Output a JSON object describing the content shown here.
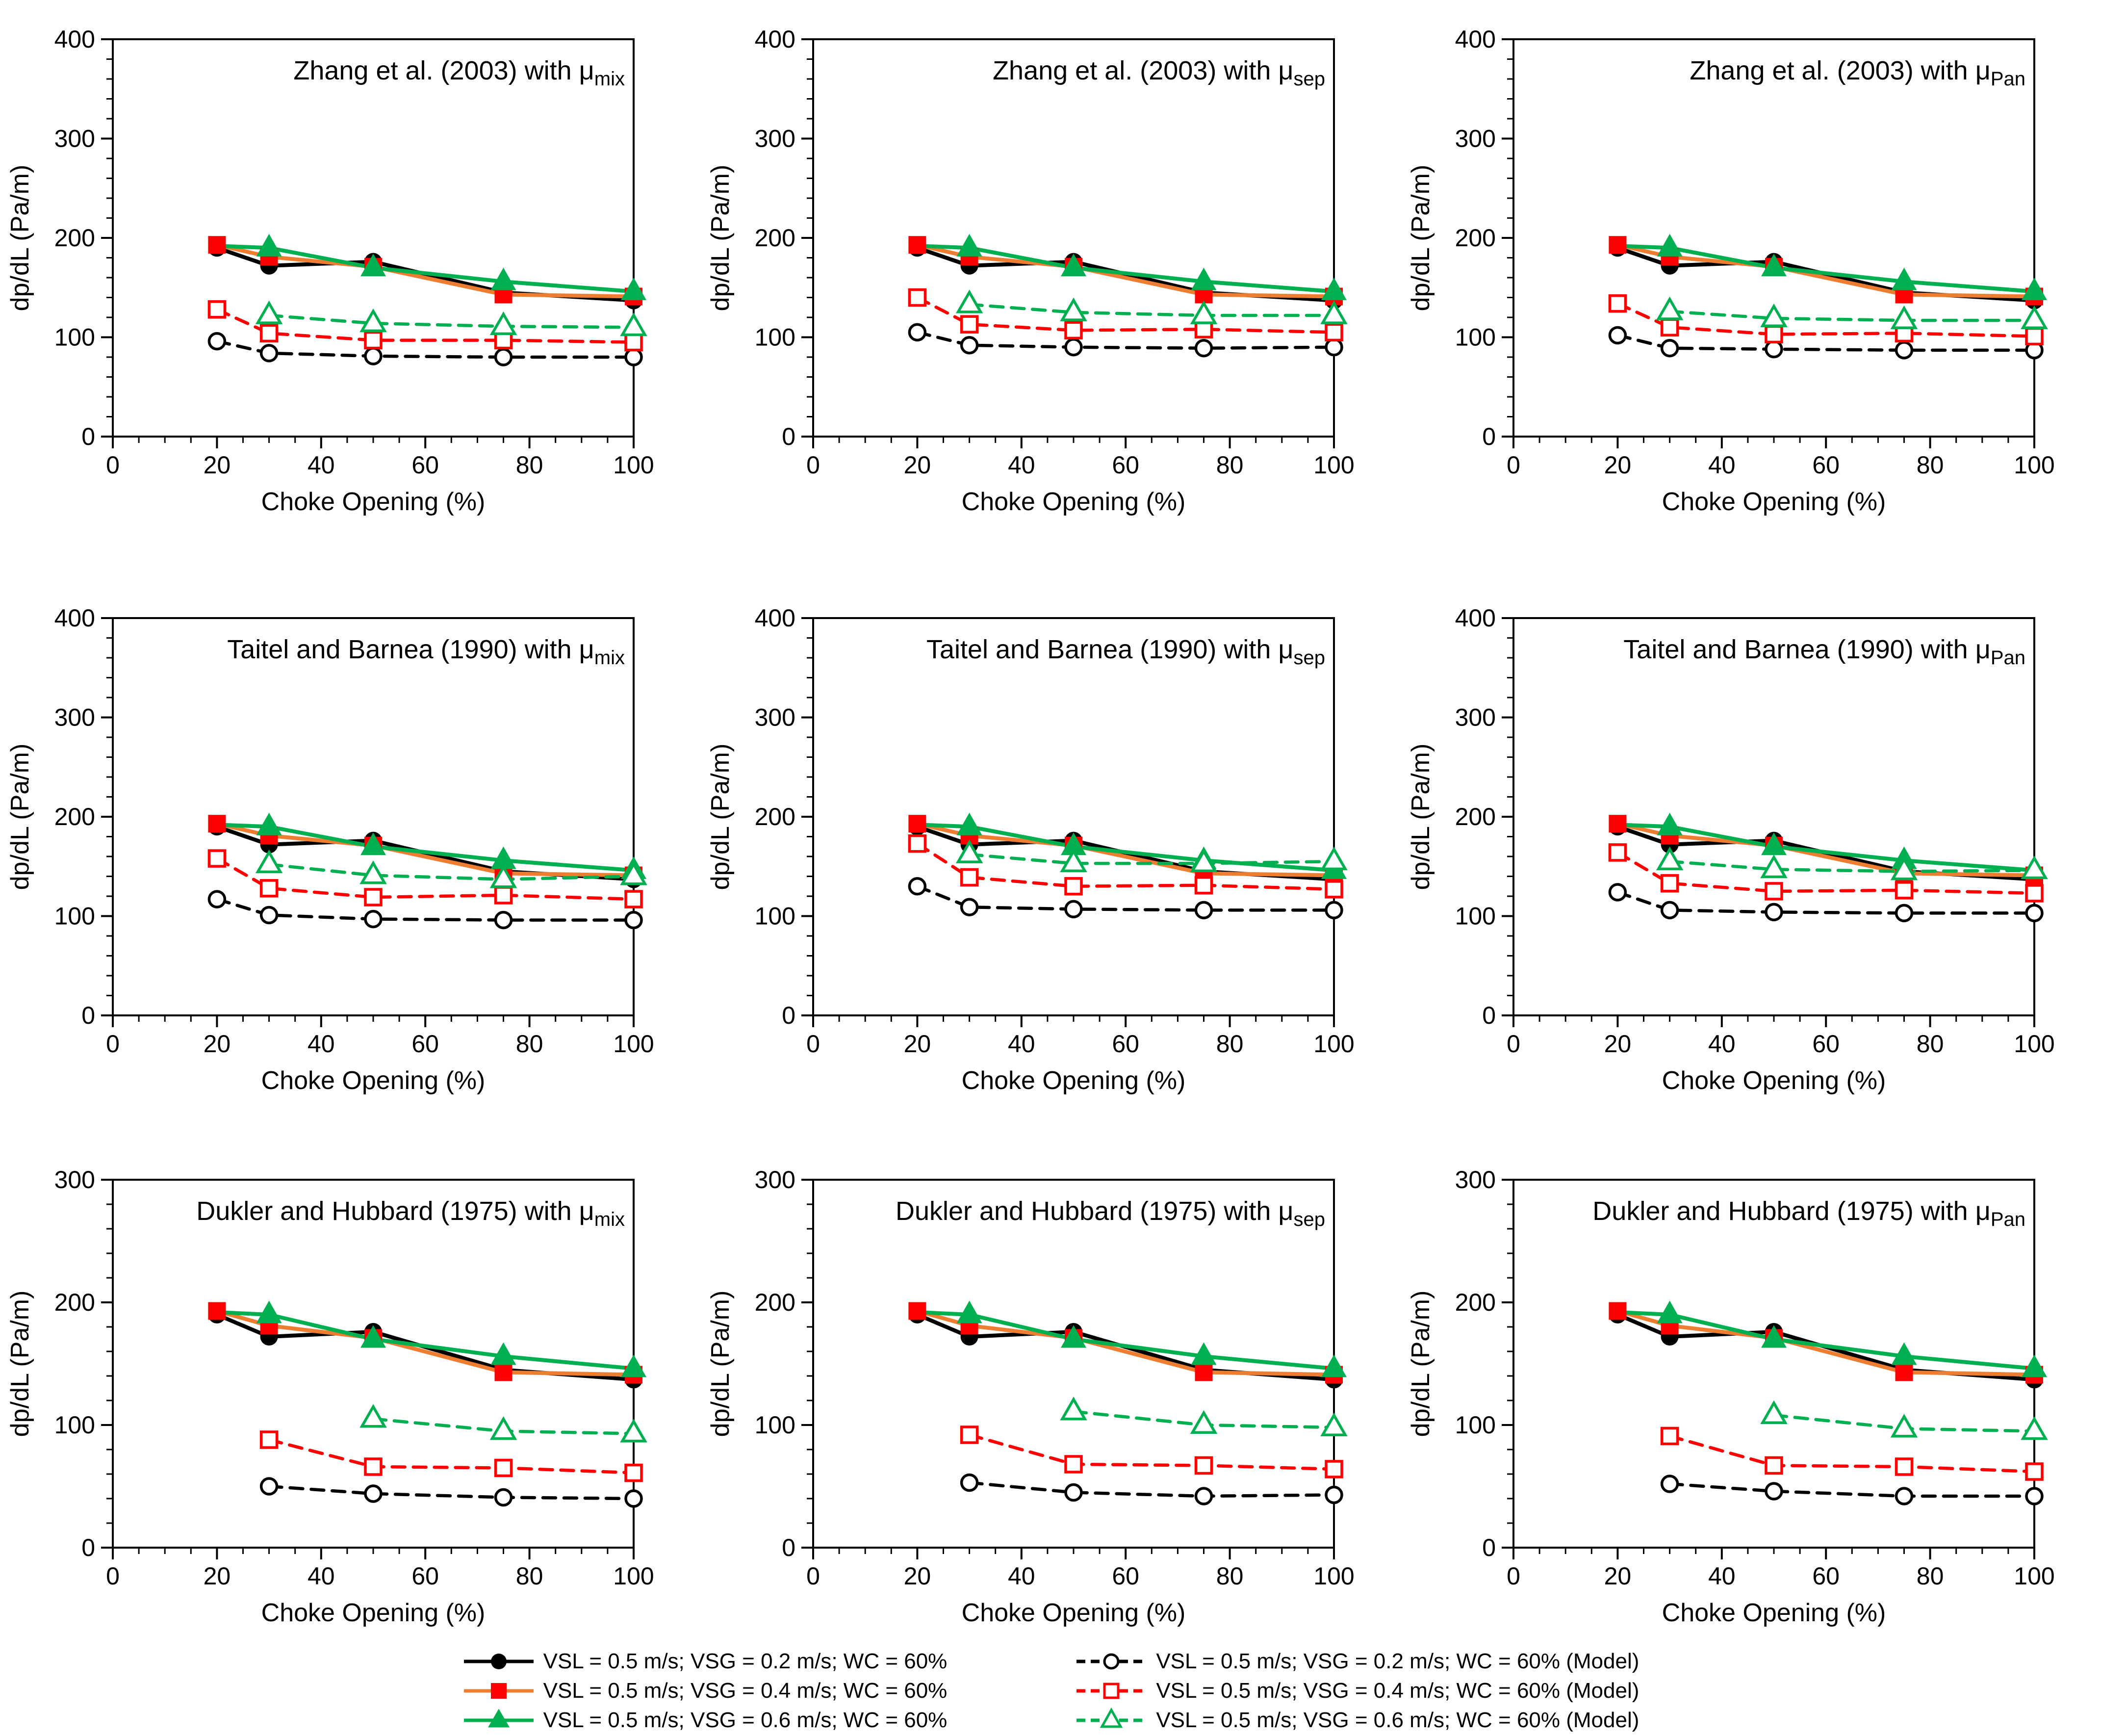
{
  "page": {
    "background": "#ffffff"
  },
  "colors": {
    "black": "#000000",
    "red": "#FF0000",
    "orange_line": "#ED7D31",
    "green": "#00B050",
    "axis": "#000000"
  },
  "legend": {
    "experimental": [
      {
        "label": "VSL = 0.5 m/s; VSG = 0.2 m/s; WC = 60%",
        "marker": "circle",
        "marker_color": "#000000",
        "filled": true,
        "line": "solid",
        "line_color": "#000000"
      },
      {
        "label": "VSL = 0.5 m/s; VSG = 0.4 m/s; WC = 60%",
        "marker": "square",
        "marker_color": "#FF0000",
        "filled": true,
        "line": "solid",
        "line_color": "#ED7D31"
      },
      {
        "label": "VSL = 0.5 m/s; VSG = 0.6 m/s; WC = 60%",
        "marker": "triangle",
        "marker_color": "#00B050",
        "filled": true,
        "line": "solid",
        "line_color": "#00B050"
      }
    ],
    "model": [
      {
        "label": "VSL = 0.5 m/s; VSG = 0.2 m/s; WC = 60% (Model)",
        "marker": "circle",
        "marker_color": "#000000",
        "filled": false,
        "line": "dashed",
        "line_color": "#000000"
      },
      {
        "label": "VSL = 0.5 m/s; VSG = 0.4 m/s; WC = 60% (Model)",
        "marker": "square",
        "marker_color": "#FF0000",
        "filled": false,
        "line": "dashed",
        "line_color": "#FF0000"
      },
      {
        "label": "VSL = 0.5 m/s; VSG = 0.6 m/s; WC = 60% (Model)",
        "marker": "triangle",
        "marker_color": "#00B050",
        "filled": false,
        "line": "dashed",
        "line_color": "#00B050"
      }
    ]
  },
  "chart_data": {
    "type": "line",
    "xlabel": "Choke Opening (%)",
    "ylabel": "dp/dL (Pa/m)",
    "xlim": [
      0,
      100
    ],
    "x_ticks": [
      0,
      20,
      40,
      60,
      80,
      100
    ],
    "x_minor_step": 5,
    "y_minor_step": 20,
    "grid": false,
    "legend_position": "bottom",
    "experimental_series": [
      {
        "name": "VSL = 0.5 m/s; VSG = 0.2 m/s; WC = 60%",
        "marker": "circle",
        "marker_color": "#000000",
        "filled": true,
        "line": "solid",
        "line_color": "#000000",
        "x": [
          20,
          30,
          50,
          75,
          100
        ],
        "y": [
          190,
          172,
          176,
          145,
          137
        ]
      },
      {
        "name": "VSL = 0.5 m/s; VSG = 0.4 m/s; WC = 60%",
        "marker": "square",
        "marker_color": "#FF0000",
        "filled": true,
        "line": "solid",
        "line_color": "#ED7D31",
        "x": [
          20,
          30,
          50,
          75,
          100
        ],
        "y": [
          193,
          181,
          171,
          143,
          141
        ]
      },
      {
        "name": "VSL = 0.5 m/s; VSG = 0.6 m/s; WC = 60%",
        "marker": "triangle",
        "marker_color": "#00B050",
        "filled": true,
        "line": "solid",
        "line_color": "#00B050",
        "x": [
          20,
          30,
          50,
          75,
          100
        ],
        "y": [
          192,
          190,
          170,
          156,
          146
        ],
        "skip_first_marker": true
      }
    ],
    "charts": [
      {
        "id": "zhang-mu-mix",
        "title_base": "Zhang et al. (2003) with μ",
        "title_sub": "mix",
        "ylim": [
          0,
          400
        ],
        "y_ticks": [
          0,
          100,
          200,
          300,
          400
        ],
        "row": 0,
        "col": 0,
        "model_series": [
          {
            "name": "VSL = 0.5 m/s; VSG = 0.2 m/s; WC = 60% (Model)",
            "marker": "circle",
            "marker_color": "#000000",
            "filled": false,
            "line": "dashed",
            "line_color": "#000000",
            "x": [
              20,
              30,
              50,
              75,
              100
            ],
            "y": [
              96,
              84,
              81,
              80,
              80
            ]
          },
          {
            "name": "VSL = 0.5 m/s; VSG = 0.4 m/s; WC = 60% (Model)",
            "marker": "square",
            "marker_color": "#FF0000",
            "filled": false,
            "line": "dashed",
            "line_color": "#FF0000",
            "x": [
              20,
              30,
              50,
              75,
              100
            ],
            "y": [
              128,
              104,
              97,
              97,
              95
            ]
          },
          {
            "name": "VSL = 0.5 m/s; VSG = 0.6 m/s; WC = 60% (Model)",
            "marker": "triangle",
            "marker_color": "#00B050",
            "filled": false,
            "line": "dashed",
            "line_color": "#00B050",
            "x": [
              30,
              50,
              75,
              100
            ],
            "y": [
              122,
              114,
              111,
              110
            ]
          }
        ]
      },
      {
        "id": "zhang-mu-sep",
        "title_base": "Zhang et al. (2003) with μ",
        "title_sub": "sep",
        "ylim": [
          0,
          400
        ],
        "y_ticks": [
          0,
          100,
          200,
          300,
          400
        ],
        "row": 0,
        "col": 1,
        "model_series": [
          {
            "name": "VSL = 0.5 m/s; VSG = 0.2 m/s; WC = 60% (Model)",
            "marker": "circle",
            "marker_color": "#000000",
            "filled": false,
            "line": "dashed",
            "line_color": "#000000",
            "x": [
              20,
              30,
              50,
              75,
              100
            ],
            "y": [
              105,
              92,
              90,
              89,
              90
            ]
          },
          {
            "name": "VSL = 0.5 m/s; VSG = 0.4 m/s; WC = 60% (Model)",
            "marker": "square",
            "marker_color": "#FF0000",
            "filled": false,
            "line": "dashed",
            "line_color": "#FF0000",
            "x": [
              20,
              30,
              50,
              75,
              100
            ],
            "y": [
              140,
              113,
              107,
              108,
              105
            ]
          },
          {
            "name": "VSL = 0.5 m/s; VSG = 0.6 m/s; WC = 60% (Model)",
            "marker": "triangle",
            "marker_color": "#00B050",
            "filled": false,
            "line": "dashed",
            "line_color": "#00B050",
            "x": [
              30,
              50,
              75,
              100
            ],
            "y": [
              133,
              125,
              122,
              122
            ]
          }
        ]
      },
      {
        "id": "zhang-mu-pan",
        "title_base": "Zhang et al. (2003) with μ",
        "title_sub": "Pan",
        "ylim": [
          0,
          400
        ],
        "y_ticks": [
          0,
          100,
          200,
          300,
          400
        ],
        "row": 0,
        "col": 2,
        "model_series": [
          {
            "name": "VSL = 0.5 m/s; VSG = 0.2 m/s; WC = 60% (Model)",
            "marker": "circle",
            "marker_color": "#000000",
            "filled": false,
            "line": "dashed",
            "line_color": "#000000",
            "x": [
              20,
              30,
              50,
              75,
              100
            ],
            "y": [
              102,
              89,
              88,
              87,
              87
            ]
          },
          {
            "name": "VSL = 0.5 m/s; VSG = 0.4 m/s; WC = 60% (Model)",
            "marker": "square",
            "marker_color": "#FF0000",
            "filled": false,
            "line": "dashed",
            "line_color": "#FF0000",
            "x": [
              20,
              30,
              50,
              75,
              100
            ],
            "y": [
              134,
              110,
              103,
              104,
              101
            ]
          },
          {
            "name": "VSL = 0.5 m/s; VSG = 0.6 m/s; WC = 60% (Model)",
            "marker": "triangle",
            "marker_color": "#00B050",
            "filled": false,
            "line": "dashed",
            "line_color": "#00B050",
            "x": [
              30,
              50,
              75,
              100
            ],
            "y": [
              126,
              119,
              117,
              117
            ]
          }
        ]
      },
      {
        "id": "taitel-mu-mix",
        "title_base": "Taitel and Barnea (1990) with μ",
        "title_sub": "mix",
        "ylim": [
          0,
          400
        ],
        "y_ticks": [
          0,
          100,
          200,
          300,
          400
        ],
        "row": 1,
        "col": 0,
        "model_series": [
          {
            "name": "VSL = 0.5 m/s; VSG = 0.2 m/s; WC = 60% (Model)",
            "marker": "circle",
            "marker_color": "#000000",
            "filled": false,
            "line": "dashed",
            "line_color": "#000000",
            "x": [
              20,
              30,
              50,
              75,
              100
            ],
            "y": [
              117,
              101,
              97,
              96,
              96
            ]
          },
          {
            "name": "VSL = 0.5 m/s; VSG = 0.4 m/s; WC = 60% (Model)",
            "marker": "square",
            "marker_color": "#FF0000",
            "filled": false,
            "line": "dashed",
            "line_color": "#FF0000",
            "x": [
              20,
              30,
              50,
              75,
              100
            ],
            "y": [
              158,
              128,
              119,
              121,
              117
            ]
          },
          {
            "name": "VSL = 0.5 m/s; VSG = 0.6 m/s; WC = 60% (Model)",
            "marker": "triangle",
            "marker_color": "#00B050",
            "filled": false,
            "line": "dashed",
            "line_color": "#00B050",
            "x": [
              30,
              50,
              75,
              100
            ],
            "y": [
              152,
              141,
              137,
              140
            ]
          }
        ]
      },
      {
        "id": "taitel-mu-sep",
        "title_base": "Taitel and Barnea (1990) with μ",
        "title_sub": "sep",
        "ylim": [
          0,
          400
        ],
        "y_ticks": [
          0,
          100,
          200,
          300,
          400
        ],
        "row": 1,
        "col": 1,
        "model_series": [
          {
            "name": "VSL = 0.5 m/s; VSG = 0.2 m/s; WC = 60% (Model)",
            "marker": "circle",
            "marker_color": "#000000",
            "filled": false,
            "line": "dashed",
            "line_color": "#000000",
            "x": [
              20,
              30,
              50,
              75,
              100
            ],
            "y": [
              130,
              109,
              107,
              106,
              106
            ]
          },
          {
            "name": "VSL = 0.5 m/s; VSG = 0.4 m/s; WC = 60% (Model)",
            "marker": "square",
            "marker_color": "#FF0000",
            "filled": false,
            "line": "dashed",
            "line_color": "#FF0000",
            "x": [
              20,
              30,
              50,
              75,
              100
            ],
            "y": [
              173,
              139,
              130,
              131,
              127
            ]
          },
          {
            "name": "VSL = 0.5 m/s; VSG = 0.6 m/s; WC = 60% (Model)",
            "marker": "triangle",
            "marker_color": "#00B050",
            "filled": false,
            "line": "dashed",
            "line_color": "#00B050",
            "x": [
              30,
              50,
              75,
              100
            ],
            "y": [
              162,
              153,
              153,
              155
            ]
          }
        ]
      },
      {
        "id": "taitel-mu-pan",
        "title_base": "Taitel and Barnea (1990) with μ",
        "title_sub": "Pan",
        "ylim": [
          0,
          400
        ],
        "y_ticks": [
          0,
          100,
          200,
          300,
          400
        ],
        "row": 1,
        "col": 2,
        "model_series": [
          {
            "name": "VSL = 0.5 m/s; VSG = 0.2 m/s; WC = 60% (Model)",
            "marker": "circle",
            "marker_color": "#000000",
            "filled": false,
            "line": "dashed",
            "line_color": "#000000",
            "x": [
              20,
              30,
              50,
              75,
              100
            ],
            "y": [
              124,
              106,
              104,
              103,
              103
            ]
          },
          {
            "name": "VSL = 0.5 m/s; VSG = 0.4 m/s; WC = 60% (Model)",
            "marker": "square",
            "marker_color": "#FF0000",
            "filled": false,
            "line": "dashed",
            "line_color": "#FF0000",
            "x": [
              20,
              30,
              50,
              75,
              100
            ],
            "y": [
              164,
              133,
              125,
              126,
              123
            ]
          },
          {
            "name": "VSL = 0.5 m/s; VSG = 0.6 m/s; WC = 60% (Model)",
            "marker": "triangle",
            "marker_color": "#00B050",
            "filled": false,
            "line": "dashed",
            "line_color": "#00B050",
            "x": [
              30,
              50,
              75,
              100
            ],
            "y": [
              155,
              147,
              145,
              146
            ]
          }
        ]
      },
      {
        "id": "dukler-mu-mix",
        "title_base": "Dukler and Hubbard (1975) with μ",
        "title_sub": "mix",
        "ylim": [
          0,
          300
        ],
        "y_ticks": [
          0,
          100,
          200,
          300
        ],
        "row": 2,
        "col": 0,
        "model_series": [
          {
            "name": "VSL = 0.5 m/s; VSG = 0.2 m/s; WC = 60% (Model)",
            "marker": "circle",
            "marker_color": "#000000",
            "filled": false,
            "line": "dashed",
            "line_color": "#000000",
            "x": [
              30,
              50,
              75,
              100
            ],
            "y": [
              50,
              44,
              41,
              40
            ]
          },
          {
            "name": "VSL = 0.5 m/s; VSG = 0.4 m/s; WC = 60% (Model)",
            "marker": "square",
            "marker_color": "#FF0000",
            "filled": false,
            "line": "dashed",
            "line_color": "#FF0000",
            "x": [
              30,
              50,
              75,
              100
            ],
            "y": [
              88,
              66,
              65,
              61
            ]
          },
          {
            "name": "VSL = 0.5 m/s; VSG = 0.6 m/s; WC = 60% (Model)",
            "marker": "triangle",
            "marker_color": "#00B050",
            "filled": false,
            "line": "dashed",
            "line_color": "#00B050",
            "x": [
              50,
              75,
              100
            ],
            "y": [
              105,
              95,
              93
            ]
          }
        ]
      },
      {
        "id": "dukler-mu-sep",
        "title_base": "Dukler and Hubbard (1975) with μ",
        "title_sub": "sep",
        "ylim": [
          0,
          300
        ],
        "y_ticks": [
          0,
          100,
          200,
          300
        ],
        "row": 2,
        "col": 1,
        "model_series": [
          {
            "name": "VSL = 0.5 m/s; VSG = 0.2 m/s; WC = 60% (Model)",
            "marker": "circle",
            "marker_color": "#000000",
            "filled": false,
            "line": "dashed",
            "line_color": "#000000",
            "x": [
              30,
              50,
              75,
              100
            ],
            "y": [
              53,
              45,
              42,
              43
            ]
          },
          {
            "name": "VSL = 0.5 m/s; VSG = 0.4 m/s; WC = 60% (Model)",
            "marker": "square",
            "marker_color": "#FF0000",
            "filled": false,
            "line": "dashed",
            "line_color": "#FF0000",
            "x": [
              30,
              50,
              75,
              100
            ],
            "y": [
              92,
              68,
              67,
              64
            ]
          },
          {
            "name": "VSL = 0.5 m/s; VSG = 0.6 m/s; WC = 60% (Model)",
            "marker": "triangle",
            "marker_color": "#00B050",
            "filled": false,
            "line": "dashed",
            "line_color": "#00B050",
            "x": [
              50,
              75,
              100
            ],
            "y": [
              111,
              100,
              98
            ]
          }
        ]
      },
      {
        "id": "dukler-mu-pan",
        "title_base": "Dukler and Hubbard (1975) with μ",
        "title_sub": "Pan",
        "ylim": [
          0,
          300
        ],
        "y_ticks": [
          0,
          100,
          200,
          300
        ],
        "row": 2,
        "col": 2,
        "model_series": [
          {
            "name": "VSL = 0.5 m/s; VSG = 0.2 m/s; WC = 60% (Model)",
            "marker": "circle",
            "marker_color": "#000000",
            "filled": false,
            "line": "dashed",
            "line_color": "#000000",
            "x": [
              30,
              50,
              75,
              100
            ],
            "y": [
              52,
              46,
              42,
              42
            ]
          },
          {
            "name": "VSL = 0.5 m/s; VSG = 0.4 m/s; WC = 60% (Model)",
            "marker": "square",
            "marker_color": "#FF0000",
            "filled": false,
            "line": "dashed",
            "line_color": "#FF0000",
            "x": [
              30,
              50,
              75,
              100
            ],
            "y": [
              91,
              67,
              66,
              62
            ]
          },
          {
            "name": "VSL = 0.5 m/s; VSG = 0.6 m/s; WC = 60% (Model)",
            "marker": "triangle",
            "marker_color": "#00B050",
            "filled": false,
            "line": "dashed",
            "line_color": "#00B050",
            "x": [
              50,
              75,
              100
            ],
            "y": [
              108,
              97,
              95
            ]
          }
        ]
      }
    ]
  }
}
